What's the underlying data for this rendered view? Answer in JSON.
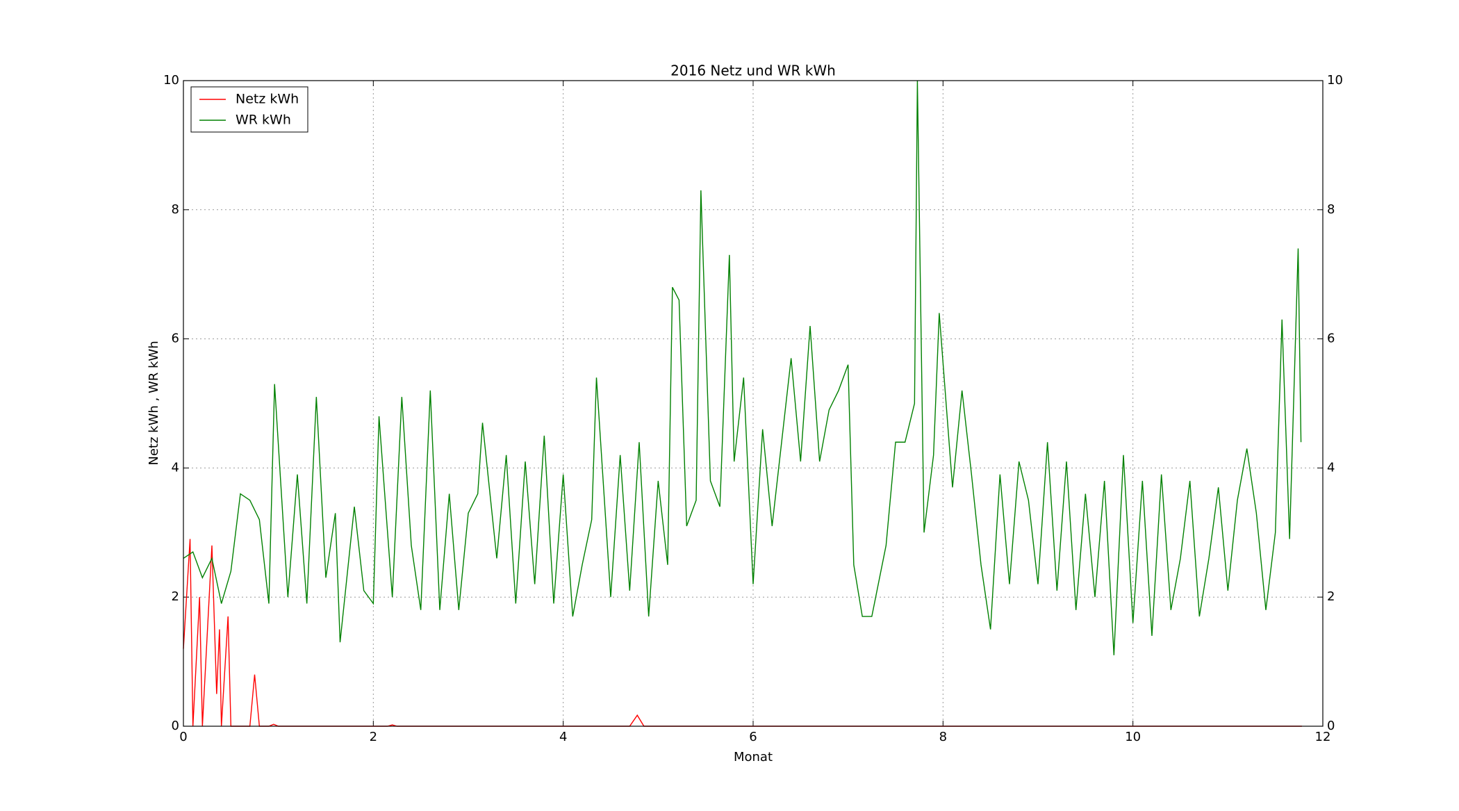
{
  "chart_data": {
    "type": "line",
    "title": "2016 Netz und WR kWh",
    "xlabel": "Monat",
    "ylabel": "Netz kWh , WR kWh",
    "xlim": [
      0,
      12
    ],
    "xticks": [
      0,
      2,
      4,
      6,
      8,
      10,
      12
    ],
    "ylim": [
      0,
      10
    ],
    "yticks": [
      0,
      2,
      4,
      6,
      8,
      10
    ],
    "grid": true,
    "legend": "upper left",
    "series": [
      {
        "name": "Netz kWh",
        "color": "#ff0000",
        "x": [
          0,
          0.07,
          0.1,
          0.17,
          0.2,
          0.3,
          0.35,
          0.38,
          0.4,
          0.47,
          0.5,
          0.7,
          0.75,
          0.8,
          0.9,
          0.95,
          1.0,
          2.15,
          2.2,
          2.25,
          4.7,
          4.78,
          4.85,
          11.78
        ],
        "values": [
          1.2,
          2.9,
          0,
          2.0,
          0,
          2.8,
          0.5,
          1.5,
          0,
          1.7,
          0,
          0,
          0.8,
          0,
          0,
          0.03,
          0,
          0,
          0.02,
          0,
          0,
          0.17,
          0,
          0
        ]
      },
      {
        "name": "WR kWh",
        "color": "#008000",
        "x": [
          0,
          0.1,
          0.2,
          0.3,
          0.4,
          0.5,
          0.6,
          0.7,
          0.8,
          0.9,
          0.96,
          1.1,
          1.2,
          1.3,
          1.4,
          1.5,
          1.6,
          1.65,
          1.8,
          1.9,
          2.0,
          2.06,
          2.2,
          2.3,
          2.4,
          2.5,
          2.6,
          2.7,
          2.8,
          2.9,
          3.0,
          3.1,
          3.15,
          3.3,
          3.4,
          3.5,
          3.6,
          3.7,
          3.8,
          3.9,
          4.0,
          4.1,
          4.2,
          4.3,
          4.35,
          4.5,
          4.6,
          4.7,
          4.8,
          4.9,
          5.0,
          5.1,
          5.15,
          5.22,
          5.3,
          5.4,
          5.45,
          5.55,
          5.65,
          5.75,
          5.8,
          5.9,
          6.0,
          6.1,
          6.2,
          6.3,
          6.4,
          6.5,
          6.6,
          6.7,
          6.8,
          6.9,
          7.0,
          7.06,
          7.15,
          7.25,
          7.4,
          7.5,
          7.6,
          7.7,
          7.73,
          7.8,
          7.9,
          7.96,
          8.1,
          8.2,
          8.3,
          8.4,
          8.5,
          8.6,
          8.7,
          8.8,
          8.9,
          9.0,
          9.1,
          9.2,
          9.3,
          9.4,
          9.5,
          9.6,
          9.7,
          9.8,
          9.9,
          10.0,
          10.1,
          10.2,
          10.3,
          10.4,
          10.5,
          10.6,
          10.7,
          10.8,
          10.9,
          11.0,
          11.1,
          11.2,
          11.3,
          11.4,
          11.5,
          11.57,
          11.65,
          11.74,
          11.77
        ],
        "values": [
          2.6,
          2.7,
          2.3,
          2.6,
          1.9,
          2.4,
          3.6,
          3.5,
          3.2,
          1.9,
          5.3,
          2.0,
          3.9,
          1.9,
          5.1,
          2.3,
          3.3,
          1.3,
          3.4,
          2.1,
          1.9,
          4.8,
          2.0,
          5.1,
          2.8,
          1.8,
          5.2,
          1.8,
          3.6,
          1.8,
          3.3,
          3.6,
          4.7,
          2.6,
          4.2,
          1.9,
          4.1,
          2.2,
          4.5,
          1.9,
          3.9,
          1.7,
          2.5,
          3.2,
          5.4,
          2.0,
          4.2,
          2.1,
          4.4,
          1.7,
          3.8,
          2.5,
          6.8,
          6.6,
          3.1,
          3.5,
          8.3,
          3.8,
          3.4,
          7.3,
          4.1,
          5.4,
          2.2,
          4.6,
          3.1,
          4.4,
          5.7,
          4.1,
          6.2,
          4.1,
          4.9,
          5.2,
          5.6,
          2.5,
          1.7,
          1.7,
          2.8,
          4.4,
          4.4,
          5.0,
          10.0,
          3.0,
          4.2,
          6.4,
          3.7,
          5.2,
          3.9,
          2.5,
          1.5,
          3.9,
          2.2,
          4.1,
          3.5,
          2.2,
          4.4,
          2.1,
          4.1,
          1.8,
          3.6,
          2.0,
          3.8,
          1.1,
          4.2,
          1.6,
          3.8,
          1.4,
          3.9,
          1.8,
          2.6,
          3.8,
          1.7,
          2.6,
          3.7,
          2.1,
          3.5,
          4.3,
          3.3,
          1.8,
          3.0,
          6.3,
          2.9,
          7.4,
          4.4
        ]
      }
    ]
  }
}
